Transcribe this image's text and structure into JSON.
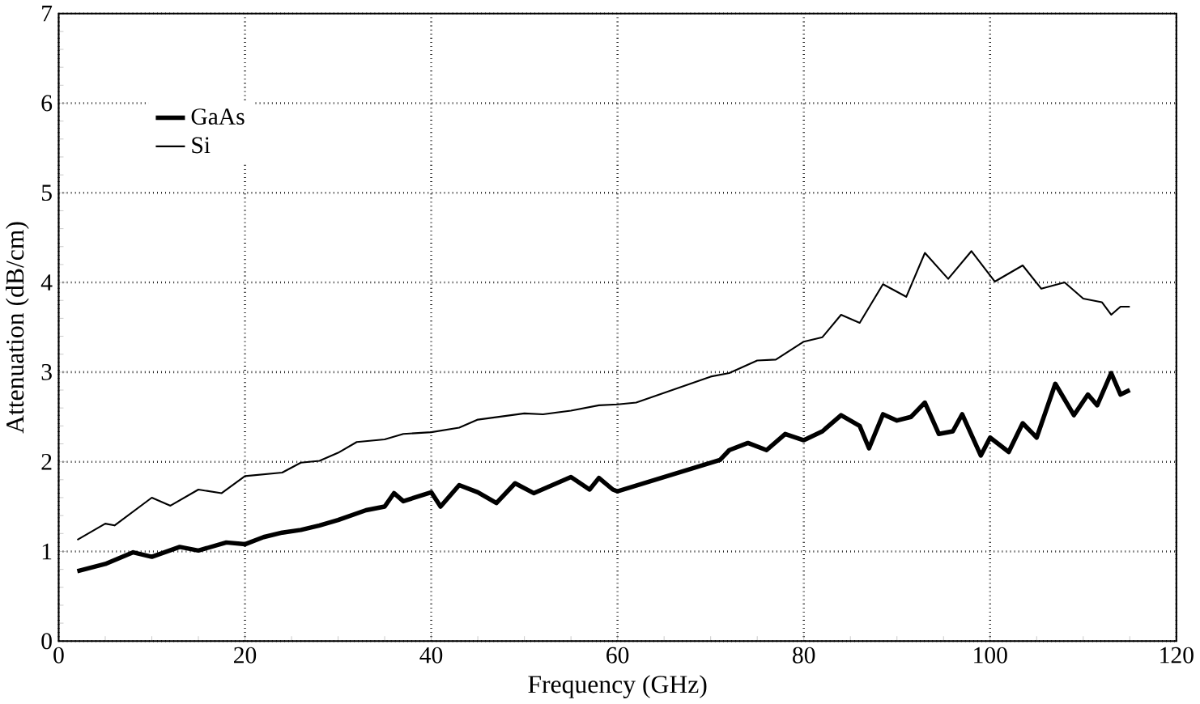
{
  "chart_data": {
    "type": "line",
    "xlabel": "Frequency (GHz)",
    "ylabel": "Attenuation (dB/cm)",
    "xlim": [
      0,
      120
    ],
    "ylim": [
      0,
      7
    ],
    "xticks": [
      0,
      20,
      40,
      60,
      80,
      100,
      120
    ],
    "yticks": [
      0,
      1,
      2,
      3,
      4,
      5,
      6,
      7
    ],
    "grid": true,
    "legend": "top left",
    "line_style": "solid",
    "series": [
      {
        "name": "GaAs",
        "color": "#000000",
        "x": [
          2,
          5,
          8,
          10,
          13,
          15,
          18,
          20,
          22,
          24,
          26,
          28,
          30,
          33,
          35,
          36,
          37,
          40,
          41,
          43,
          45,
          47,
          49,
          51,
          53,
          55,
          57,
          58,
          59.5,
          60,
          71,
          72,
          74,
          76,
          78,
          80,
          82,
          84,
          86,
          87,
          88.5,
          90,
          91.5,
          93,
          94.5,
          96,
          97,
          99,
          100,
          102,
          103.5,
          105,
          107,
          109,
          110.5,
          111.5,
          113,
          114,
          115
        ],
        "values": [
          0.78,
          0.86,
          0.99,
          0.94,
          1.05,
          1.01,
          1.1,
          1.08,
          1.16,
          1.21,
          1.24,
          1.29,
          1.35,
          1.46,
          1.5,
          1.65,
          1.56,
          1.66,
          1.5,
          1.74,
          1.66,
          1.54,
          1.76,
          1.65,
          1.74,
          1.83,
          1.69,
          1.82,
          1.69,
          1.67,
          2.02,
          2.13,
          2.21,
          2.13,
          2.31,
          2.24,
          2.34,
          2.52,
          2.4,
          2.15,
          2.53,
          2.46,
          2.5,
          2.66,
          2.31,
          2.34,
          2.53,
          2.07,
          2.27,
          2.11,
          2.43,
          2.27,
          2.87,
          2.52,
          2.75,
          2.63,
          2.99,
          2.75,
          2.8
        ]
      },
      {
        "name": "Si",
        "color": "#000000",
        "x": [
          2,
          5,
          6,
          10,
          12,
          15,
          17.5,
          20,
          24,
          26,
          28,
          30,
          32,
          35,
          37,
          40,
          43,
          45,
          50,
          52,
          55,
          58,
          60,
          62,
          70,
          72,
          75,
          77,
          80,
          82,
          84,
          86,
          88.5,
          91,
          93,
          95.5,
          98,
          100.5,
          103.5,
          105.5,
          108,
          110,
          112,
          113,
          114,
          115
        ],
        "values": [
          1.13,
          1.31,
          1.29,
          1.6,
          1.51,
          1.69,
          1.65,
          1.84,
          1.88,
          1.99,
          2.01,
          2.1,
          2.22,
          2.25,
          2.31,
          2.33,
          2.38,
          2.47,
          2.54,
          2.53,
          2.57,
          2.63,
          2.64,
          2.66,
          2.95,
          2.99,
          3.13,
          3.14,
          3.34,
          3.39,
          3.64,
          3.55,
          3.98,
          3.84,
          4.33,
          4.04,
          4.35,
          4.01,
          4.19,
          3.93,
          4.0,
          3.82,
          3.78,
          3.64,
          3.73,
          3.73
        ]
      }
    ]
  }
}
